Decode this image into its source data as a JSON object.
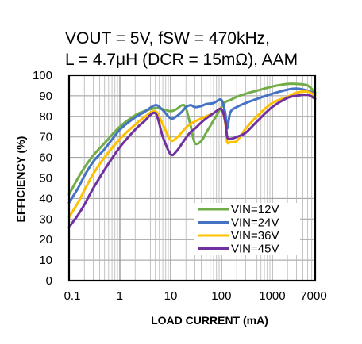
{
  "chart_data": {
    "type": "line",
    "title_lines": [
      "VOUT = 5V, fSW = 470kHz,",
      "L = 4.7μH (DCR = 15mΩ), AAM"
    ],
    "xlabel": "LOAD CURRENT (mA)",
    "ylabel": "EFFICIENCY (%)",
    "x_scale": "log",
    "xlim": [
      0.1,
      7000
    ],
    "ylim": [
      0,
      100
    ],
    "x_ticks": [
      0.1,
      1,
      10,
      100,
      1000,
      7000
    ],
    "x_tick_labels": [
      "0.1",
      "1",
      "10",
      "100",
      "1000",
      "7000"
    ],
    "y_ticks": [
      0,
      10,
      20,
      30,
      40,
      50,
      60,
      70,
      80,
      90,
      100
    ],
    "y_tick_labels": [
      "0",
      "10",
      "20",
      "30",
      "40",
      "50",
      "60",
      "70",
      "80",
      "90",
      "100"
    ],
    "grid": true,
    "legend_position": "bottom-right",
    "series": [
      {
        "name": "VIN=12V",
        "color": "#70ad47",
        "x": [
          0.1,
          0.15,
          0.2,
          0.3,
          0.5,
          1,
          2,
          3,
          5,
          7,
          10,
          13,
          17,
          20,
          25,
          30,
          40,
          50,
          70,
          100,
          120,
          150,
          200,
          300,
          500,
          1000,
          2000,
          3000,
          5000,
          7000
        ],
        "y": [
          42,
          50,
          55,
          61,
          67,
          75,
          80.5,
          82.5,
          84,
          83.5,
          82.5,
          83.5,
          85.5,
          84,
          75,
          67,
          68,
          72,
          78,
          84.5,
          87,
          88,
          89.5,
          91,
          92.5,
          94.5,
          95.8,
          95.8,
          95,
          91.5
        ]
      },
      {
        "name": "VIN=24V",
        "color": "#4472c4",
        "x": [
          0.1,
          0.15,
          0.2,
          0.3,
          0.5,
          1,
          2,
          3,
          5,
          7,
          10,
          13,
          17,
          20,
          25,
          30,
          40,
          50,
          70,
          100,
          120,
          130,
          150,
          200,
          300,
          500,
          1000,
          2000,
          3000,
          5000,
          7000
        ],
        "y": [
          38,
          45,
          51,
          58,
          64,
          73.5,
          79.5,
          82,
          85.5,
          83,
          79,
          80,
          82.5,
          84.5,
          85.5,
          84.5,
          85,
          86,
          86.5,
          88,
          81,
          74,
          82,
          84.5,
          86.5,
          88.5,
          91,
          93,
          93.5,
          92.5,
          91
        ]
      },
      {
        "name": "VIN=36V",
        "color": "#ffc000",
        "x": [
          0.1,
          0.15,
          0.2,
          0.3,
          0.5,
          1,
          2,
          3,
          5,
          7,
          10,
          13,
          17,
          20,
          25,
          30,
          40,
          50,
          70,
          100,
          120,
          130,
          150,
          200,
          300,
          500,
          1000,
          2000,
          3000,
          5000,
          7000
        ],
        "y": [
          31,
          38,
          44,
          52,
          60,
          69,
          76,
          79.5,
          82.5,
          76,
          68.5,
          69.5,
          72.5,
          74.5,
          76.5,
          77.5,
          79,
          80,
          81.5,
          83.5,
          76,
          67.5,
          67.5,
          68,
          74,
          80,
          86.5,
          89.5,
          91.5,
          92,
          90
        ]
      },
      {
        "name": "VIN=45V",
        "color": "#7030a0",
        "x": [
          0.1,
          0.15,
          0.2,
          0.3,
          0.5,
          1,
          2,
          3,
          5,
          7,
          10,
          13,
          17,
          20,
          25,
          30,
          40,
          50,
          70,
          100,
          120,
          130,
          150,
          200,
          300,
          500,
          1000,
          2000,
          3000,
          5000,
          7000
        ],
        "y": [
          26,
          32,
          37,
          45,
          54,
          65,
          73.5,
          77.5,
          81.5,
          70,
          61.5,
          63,
          67,
          69.5,
          72.5,
          74,
          77,
          79,
          81.5,
          83.5,
          77,
          70,
          69,
          70,
          72,
          77.5,
          84.5,
          89,
          90,
          90.5,
          88.5
        ]
      }
    ]
  }
}
